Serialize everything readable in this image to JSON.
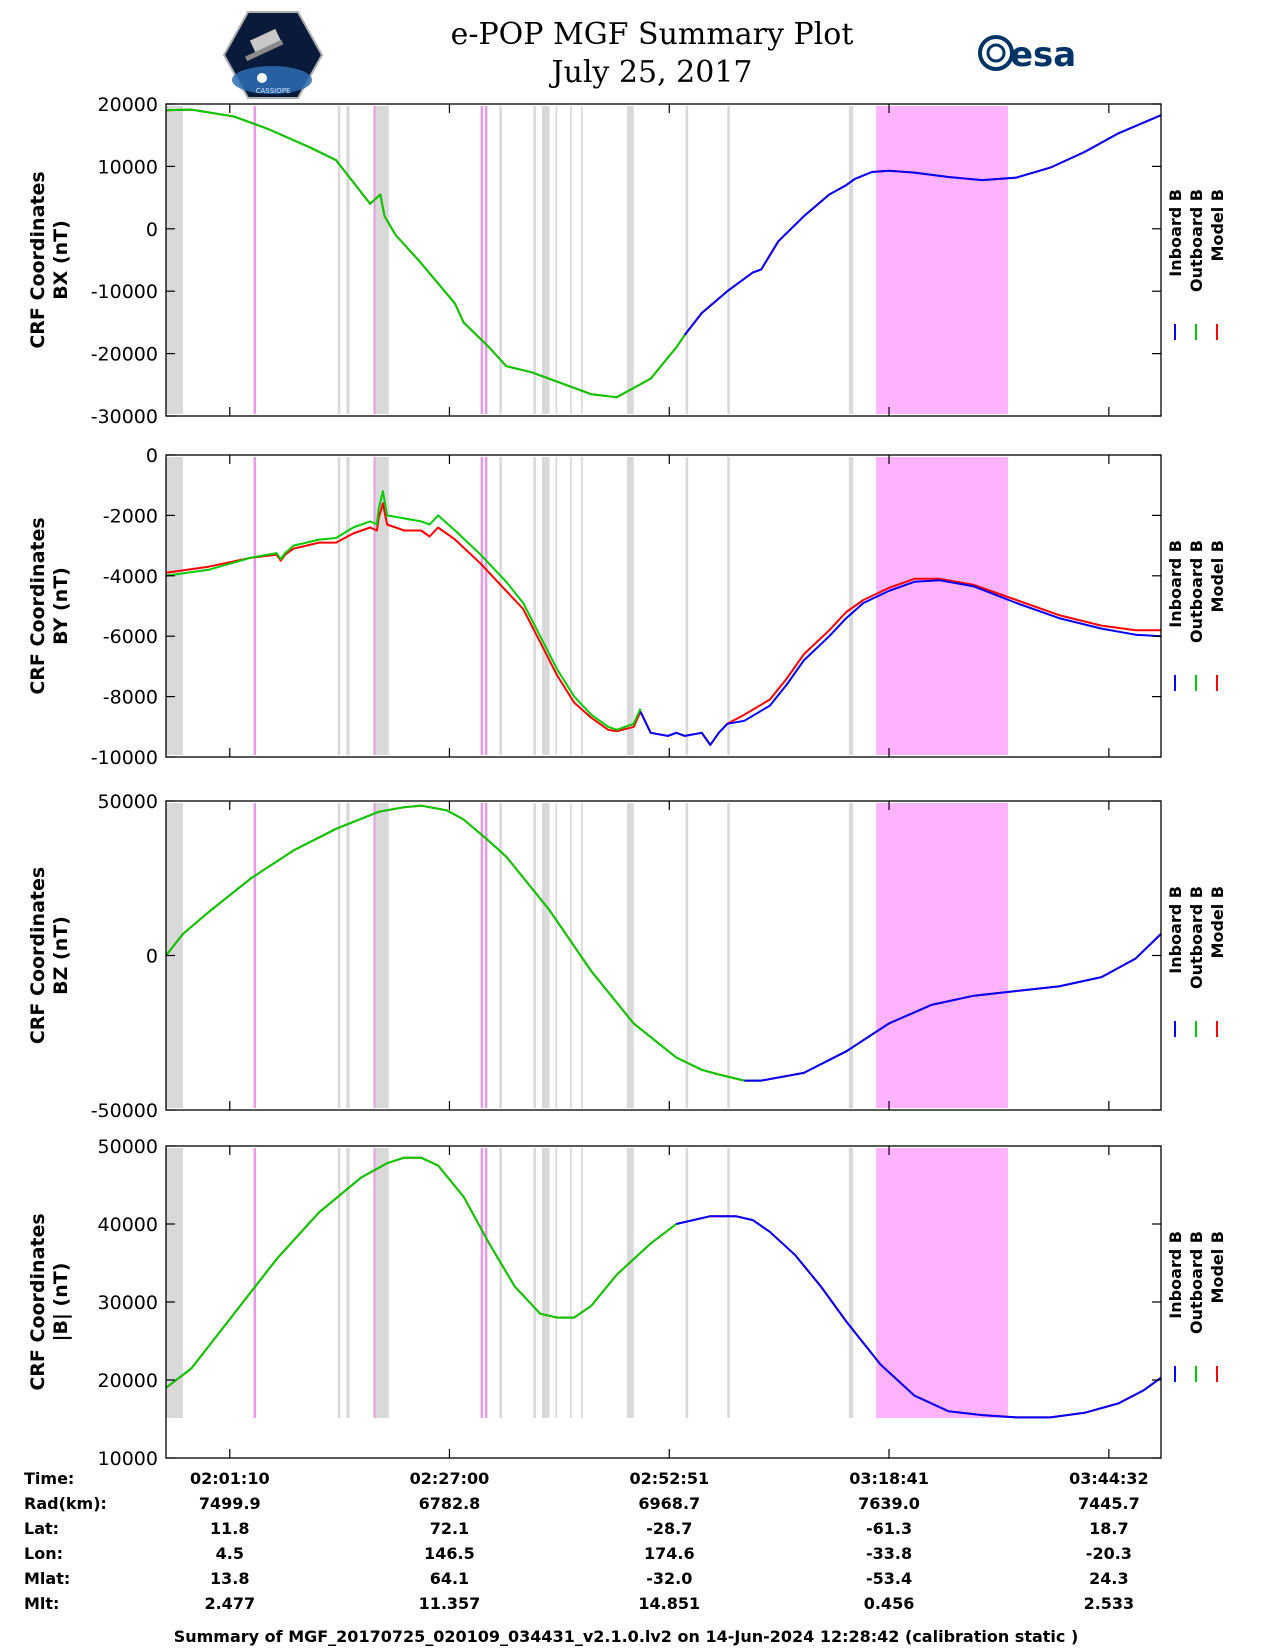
{
  "header": {
    "title_line1": "e-POP MGF Summary Plot",
    "title_line2": "July 25, 2017",
    "left_logo_text": "CASSIOPE",
    "esa_logo_text": "esa"
  },
  "colors": {
    "inboard": "#0000ff",
    "outboard": "#00cc00",
    "model": "#ff0000",
    "gray_band": "#d9d9d9",
    "pink_band": "#ffb3ff",
    "pink_line": "#e79be7"
  },
  "legend": [
    "Inboard B",
    "Outboard B",
    "Model B"
  ],
  "time_axis": {
    "range_min": [
      0,
      117
    ],
    "tick_minutes": [
      7.5,
      33.33,
      59.18,
      85.02,
      110.87
    ]
  },
  "bands": {
    "gray": [
      [
        0,
        2
      ],
      [
        20.2,
        20.5
      ],
      [
        21.2,
        21.6
      ],
      [
        24.5,
        26.2
      ],
      [
        39.2,
        39.5
      ],
      [
        43.2,
        43.5
      ],
      [
        44.2,
        45.1
      ],
      [
        45.8,
        46
      ],
      [
        47.5,
        47.7
      ],
      [
        48.8,
        49
      ],
      [
        54.2,
        55
      ],
      [
        61.1,
        61.4
      ],
      [
        66,
        66.3
      ],
      [
        80.3,
        80.8
      ]
    ],
    "pink_lines": [
      10.3,
      37,
      37.5
    ],
    "gray_under_pink": [
      [
        24.5,
        26.2
      ]
    ],
    "pink_block": [
      83.5,
      99
    ]
  },
  "ephemeris": {
    "labels": [
      "Time:",
      "Rad(km):",
      "Lat:",
      "Lon:",
      "Mlat:",
      "Mlt:"
    ],
    "columns": [
      [
        "02:01:10",
        "7499.9",
        "11.8",
        "4.5",
        "13.8",
        "2.477"
      ],
      [
        "02:27:00",
        "6782.8",
        "72.1",
        "146.5",
        "64.1",
        "11.357"
      ],
      [
        "02:52:51",
        "6968.7",
        "-28.7",
        "174.6",
        "-32.0",
        "14.851"
      ],
      [
        "03:18:41",
        "7639.0",
        "-61.3",
        "-33.8",
        "-53.4",
        "0.456"
      ],
      [
        "03:44:32",
        "7445.7",
        "18.7",
        "-20.3",
        "24.3",
        "2.533"
      ]
    ]
  },
  "footer": "Summary of MGF_20170725_020109_034431_v2.1.0.lv2 on 14-Jun-2024 12:28:42 (calibration static )",
  "chart_data": [
    {
      "type": "line",
      "ylabel_line1": "CRF Coordinates",
      "ylabel_line2": "BX (nT)",
      "ylim": [
        -30000,
        20000
      ],
      "yticks": [
        20000,
        10000,
        0,
        -10000,
        -20000,
        -30000
      ],
      "ytick_labels": [
        "20000",
        "10000",
        "0",
        "-10000",
        "-20000",
        "-30000"
      ],
      "series": [
        {
          "name": "Model B",
          "x": [
            0,
            3,
            8,
            12,
            17,
            20,
            24,
            25.2,
            25.7,
            27,
            30,
            34,
            35,
            38,
            40,
            43,
            47,
            50,
            53,
            57,
            60,
            61,
            63,
            66,
            69,
            70,
            72,
            75,
            78,
            80,
            81,
            83,
            85,
            88,
            92,
            96,
            100,
            104,
            108,
            112,
            117
          ],
          "values": [
            19000,
            19100,
            18000,
            16000,
            13000,
            11000,
            4000,
            5500,
            2000,
            -1000,
            -5500,
            -12000,
            -15000,
            -19000,
            -22000,
            -23000,
            -25000,
            -26500,
            -27000,
            -24000,
            -19000,
            -17000,
            -13500,
            -10000,
            -7000,
            -6500,
            -2000,
            2000,
            5500,
            7000,
            8000,
            9100,
            9300,
            9000,
            8300,
            7800,
            8200,
            9800,
            12300,
            15300,
            18200
          ]
        },
        {
          "name": "Outboard B",
          "x": [
            0,
            3,
            8,
            12,
            17,
            20,
            24,
            25.2,
            25.7,
            27,
            30,
            34,
            35,
            38,
            40,
            43,
            47,
            50,
            53,
            57,
            60,
            61
          ],
          "values": [
            19000,
            19100,
            18000,
            16000,
            13000,
            11000,
            4000,
            5500,
            2000,
            -1000,
            -5500,
            -12000,
            -15000,
            -19000,
            -22000,
            -23000,
            -25000,
            -26500,
            -27000,
            -24000,
            -19000,
            -17000
          ]
        },
        {
          "name": "Inboard B",
          "x": [
            61,
            63,
            66,
            69,
            70,
            72,
            75,
            78,
            80,
            81,
            83,
            85,
            88,
            92,
            96,
            100,
            104,
            108,
            112,
            117
          ],
          "values": [
            -17000,
            -13500,
            -10000,
            -7000,
            -6500,
            -2000,
            2000,
            5500,
            7000,
            8000,
            9100,
            9300,
            9000,
            8300,
            7800,
            8200,
            9800,
            12300,
            15300,
            18200
          ]
        }
      ]
    },
    {
      "type": "line",
      "ylabel_line1": "CRF Coordinates",
      "ylabel_line2": "BY (nT)",
      "ylim": [
        -10000,
        0
      ],
      "yticks": [
        0,
        -2000,
        -4000,
        -6000,
        -8000,
        -10000
      ],
      "ytick_labels": [
        "0",
        "-2000",
        "-4000",
        "-6000",
        "-8000",
        "-10000"
      ],
      "series": [
        {
          "name": "Model B",
          "x": [
            0,
            5,
            10,
            13,
            13.5,
            14,
            15,
            18,
            20,
            22,
            24,
            24.8,
            25,
            25.5,
            26,
            28,
            30,
            31,
            32,
            34,
            37,
            40,
            42,
            44,
            46,
            48,
            50,
            52,
            53,
            55,
            55.8,
            57,
            59,
            60,
            61,
            63,
            64,
            65,
            66,
            68,
            71,
            73,
            75,
            78,
            80,
            82,
            85,
            88,
            91,
            95,
            100,
            105,
            110,
            114,
            117
          ],
          "values": [
            -3900,
            -3700,
            -3400,
            -3300,
            -3500,
            -3300,
            -3100,
            -2900,
            -2900,
            -2600,
            -2400,
            -2500,
            -2100,
            -1600,
            -2300,
            -2500,
            -2500,
            -2700,
            -2400,
            -2800,
            -3600,
            -4500,
            -5100,
            -6200,
            -7300,
            -8200,
            -8700,
            -9100,
            -9150,
            -9000,
            -8500,
            -9200,
            -9300,
            -9200,
            -9300,
            -9200,
            -9600,
            -9200,
            -8900,
            -8600,
            -8100,
            -7400,
            -6600,
            -5800,
            -5200,
            -4800,
            -4400,
            -4100,
            -4100,
            -4300,
            -4800,
            -5300,
            -5650,
            -5800,
            -5800
          ]
        },
        {
          "name": "Outboard B",
          "x": [
            0,
            5,
            10,
            13,
            13.5,
            14,
            15,
            18,
            20,
            22,
            24,
            24.8,
            25,
            25.5,
            26,
            28,
            30,
            31,
            32,
            34,
            37,
            40,
            42,
            44,
            46,
            48,
            50,
            52,
            53,
            55,
            55.8
          ],
          "values": [
            -4000,
            -3800,
            -3400,
            -3250,
            -3450,
            -3250,
            -3000,
            -2800,
            -2750,
            -2400,
            -2200,
            -2300,
            -1800,
            -1200,
            -2000,
            -2100,
            -2200,
            -2300,
            -2000,
            -2500,
            -3300,
            -4200,
            -4900,
            -6000,
            -7100,
            -8000,
            -8600,
            -9000,
            -9100,
            -8900,
            -8400
          ]
        },
        {
          "name": "Inboard B",
          "x": [
            55.8,
            57,
            59,
            60,
            61,
            63,
            64,
            65,
            66,
            68,
            71,
            73,
            75,
            78,
            80,
            82,
            85,
            88,
            91,
            95,
            100,
            105,
            110,
            114,
            117
          ],
          "values": [
            -8500,
            -9200,
            -9300,
            -9200,
            -9300,
            -9200,
            -9600,
            -9200,
            -8900,
            -8800,
            -8300,
            -7600,
            -6800,
            -6000,
            -5400,
            -4900,
            -4500,
            -4200,
            -4150,
            -4350,
            -4900,
            -5400,
            -5750,
            -5950,
            -6000
          ]
        }
      ]
    },
    {
      "type": "line",
      "ylabel_line1": "CRF Coordinates",
      "ylabel_line2": "BZ (nT)",
      "ylim": [
        -50000,
        50000
      ],
      "yticks": [
        50000,
        0,
        -50000
      ],
      "ytick_labels": [
        "50000",
        "0",
        "-50000"
      ],
      "series": [
        {
          "name": "Model B",
          "x": [
            0,
            2,
            5,
            10,
            15,
            20,
            25,
            28,
            30,
            33,
            35,
            38,
            40,
            45,
            50,
            55,
            60,
            63,
            65,
            68,
            70,
            75,
            80,
            85,
            90,
            95,
            100,
            105,
            110,
            114,
            117
          ],
          "values": [
            0,
            7000,
            14000,
            25000,
            34000,
            41000,
            46500,
            48000,
            48500,
            47000,
            44000,
            37000,
            32000,
            15000,
            -5000,
            -22000,
            -33000,
            -37000,
            -38500,
            -40500,
            -40500,
            -38000,
            -31000,
            -22000,
            -16000,
            -13000,
            -11500,
            -10000,
            -7000,
            -1000,
            7000
          ]
        },
        {
          "name": "Outboard B",
          "x": [
            0,
            2,
            5,
            10,
            15,
            20,
            25,
            28,
            30,
            33,
            35,
            38,
            40,
            45,
            50,
            55,
            60,
            63,
            65,
            68,
            70
          ],
          "values": [
            0,
            7000,
            14000,
            25000,
            34000,
            41000,
            46500,
            48000,
            48500,
            47000,
            44000,
            37000,
            32000,
            15000,
            -5000,
            -22000,
            -33000,
            -37000,
            -38500,
            -40500,
            -40500
          ]
        },
        {
          "name": "Inboard B",
          "x": [
            68,
            70,
            75,
            80,
            85,
            90,
            95,
            100,
            105,
            110,
            114,
            117
          ],
          "values": [
            -40500,
            -40500,
            -38000,
            -31000,
            -22000,
            -16000,
            -13000,
            -11500,
            -10000,
            -7000,
            -1000,
            7000
          ]
        }
      ]
    },
    {
      "type": "line",
      "ylabel_line1": "CRF Coordinates",
      "ylabel_line2": "|B| (nT)",
      "ylim": [
        10000,
        50000
      ],
      "yticks": [
        50000,
        40000,
        30000,
        20000,
        10000
      ],
      "ytick_labels": [
        "50000",
        "40000",
        "30000",
        "20000",
        "10000"
      ],
      "series": [
        {
          "name": "Model B",
          "x": [
            0,
            3,
            8,
            13,
            18,
            23,
            26,
            28,
            30,
            32,
            35,
            38,
            41,
            44,
            46,
            48,
            50,
            53,
            57,
            60,
            64,
            67,
            69,
            71,
            74,
            77,
            80,
            84,
            88,
            92,
            96,
            100,
            104,
            108,
            112,
            115,
            117
          ],
          "values": [
            19000,
            21500,
            28500,
            35500,
            41500,
            46000,
            47800,
            48500,
            48500,
            47500,
            43500,
            37500,
            32000,
            28500,
            28000,
            28000,
            29500,
            33500,
            37500,
            40000,
            41000,
            41000,
            40500,
            39000,
            36000,
            32000,
            27500,
            22000,
            18000,
            16000,
            15500,
            15200,
            15200,
            15800,
            17000,
            18700,
            20300
          ]
        },
        {
          "name": "Outboard B",
          "x": [
            0,
            3,
            8,
            13,
            18,
            23,
            26,
            28,
            30,
            32,
            35,
            38,
            41,
            44,
            46,
            48,
            50,
            53,
            57,
            60
          ],
          "values": [
            19000,
            21500,
            28500,
            35500,
            41500,
            46000,
            47800,
            48500,
            48500,
            47500,
            43500,
            37500,
            32000,
            28500,
            28000,
            28000,
            29500,
            33500,
            37500,
            40000
          ]
        },
        {
          "name": "Inboard B",
          "x": [
            60,
            64,
            67,
            69,
            71,
            74,
            77,
            80,
            84,
            88,
            92,
            96,
            100,
            104,
            108,
            112,
            115,
            117
          ],
          "values": [
            40000,
            41000,
            41000,
            40500,
            39000,
            36000,
            32000,
            27500,
            22000,
            18000,
            16000,
            15500,
            15200,
            15200,
            15800,
            17000,
            18700,
            20300
          ]
        }
      ]
    }
  ]
}
